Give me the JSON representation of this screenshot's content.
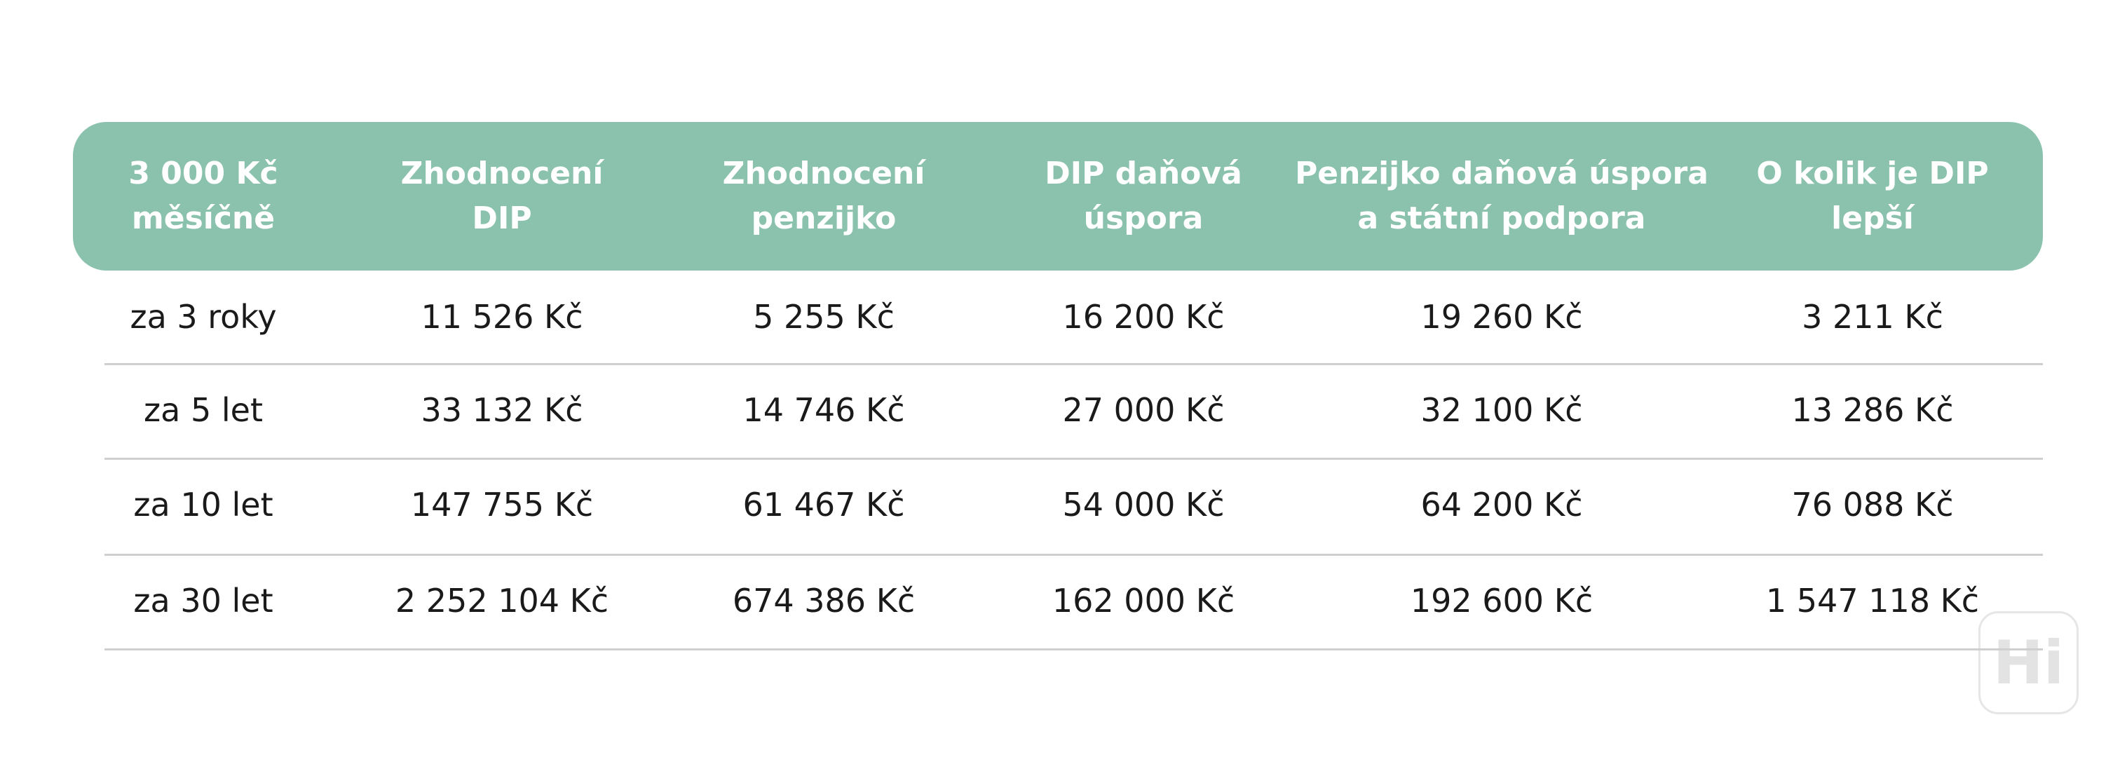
{
  "table": {
    "headers": [
      [
        "3 000 Kč",
        "měsíčně"
      ],
      [
        "Zhodnocení",
        "DIP"
      ],
      [
        "Zhodnocení",
        "penzijko"
      ],
      [
        "DIP daňová",
        "úspora"
      ],
      [
        "Penzijko daňová úspora",
        "a státní podpora"
      ],
      [
        "O kolik je DIP",
        "lepší"
      ]
    ],
    "rows": [
      [
        "za 3 roky",
        "11 526 Kč",
        "5 255 Kč",
        "16 200 Kč",
        "19 260 Kč",
        "3 211 Kč"
      ],
      [
        "za 5 let",
        "33 132 Kč",
        "14 746 Kč",
        "27 000 Kč",
        "32 100 Kč",
        "13 286 Kč"
      ],
      [
        "za 10 let",
        "147 755 Kč",
        "61 467 Kč",
        "54 000 Kč",
        "64 200 Kč",
        "76 088 Kč"
      ],
      [
        "za 30 let",
        "2 252 104 Kč",
        "674 386 Kč",
        "162 000 Kč",
        "192 600 Kč",
        "1 547 118 Kč"
      ]
    ]
  },
  "watermark": "Hi"
}
